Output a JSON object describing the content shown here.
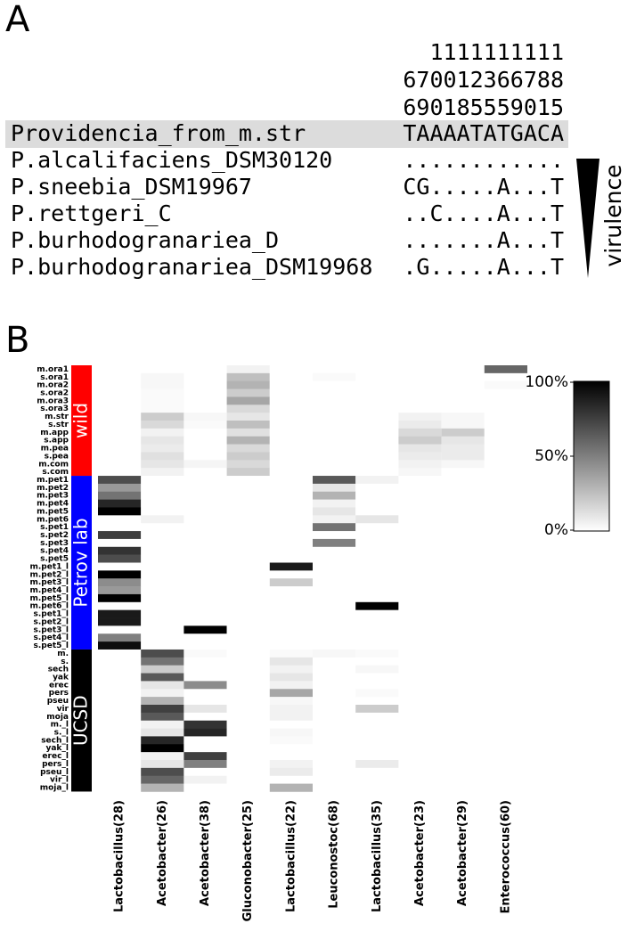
{
  "panel_a": {
    "label": "A",
    "header": [
      "1111111111",
      "670012366788",
      "690185559015"
    ],
    "rows": [
      {
        "name": "Providencia_from_m.str",
        "seq": "TAAAATATGACA"
      },
      {
        "name": "P.alcalifaciens_DSM30120",
        "seq": "............"
      },
      {
        "name": "P.sneebia_DSM19967",
        "seq": "CG.....A...T"
      },
      {
        "name": "P.rettgeri_C",
        "seq": "..C....A...T"
      },
      {
        "name": "P.burhodogranariea_D",
        "seq": ".......A...T"
      },
      {
        "name": "P.burhodogranariea_DSM19968",
        "seq": ".G.....A...T"
      }
    ],
    "annotation": "virulence"
  },
  "chart_data": {
    "type": "heatmap",
    "panel_label": "B",
    "columns": [
      "Lactobacillus(28)",
      "Acetobacter(26)",
      "Acetobacter(38)",
      "Gluconobacter(25)",
      "Lactobacillus(22)",
      "Leuconostoc(68)",
      "Lactobacillus(35)",
      "Acetobacter(23)",
      "Acetobacter(29)",
      "Enterococcus(60)"
    ],
    "zlim": [
      0,
      100
    ],
    "zticks": [
      {
        "value": 0,
        "label": "0%"
      },
      {
        "value": 50,
        "label": "50%"
      },
      {
        "value": 100,
        "label": "100%"
      }
    ],
    "colors": [
      "#ffffff",
      "#000000"
    ],
    "groups": [
      {
        "name": "wild",
        "color": "#ff0000",
        "rows": [
          {
            "label": "m.ora1",
            "values": [
              0,
              0,
              0,
              5,
              0,
              0,
              0,
              0,
              0,
              60
            ]
          },
          {
            "label": "s.ora1",
            "values": [
              0,
              3,
              0,
              25,
              0,
              2,
              0,
              0,
              0,
              0
            ]
          },
          {
            "label": "m.ora2",
            "values": [
              0,
              3,
              0,
              30,
              0,
              0,
              0,
              0,
              0,
              2
            ]
          },
          {
            "label": "s.ora2",
            "values": [
              0,
              2,
              0,
              20,
              0,
              0,
              0,
              0,
              0,
              0
            ]
          },
          {
            "label": "m.ora3",
            "values": [
              0,
              2,
              0,
              35,
              0,
              0,
              0,
              0,
              0,
              0
            ]
          },
          {
            "label": "s.ora3",
            "values": [
              0,
              2,
              0,
              15,
              0,
              0,
              0,
              0,
              0,
              0
            ]
          },
          {
            "label": "m.str",
            "values": [
              0,
              20,
              3,
              10,
              0,
              0,
              0,
              5,
              3,
              0
            ]
          },
          {
            "label": "s.str",
            "values": [
              0,
              15,
              2,
              25,
              0,
              0,
              0,
              8,
              3,
              0
            ]
          },
          {
            "label": "m.app",
            "values": [
              0,
              5,
              0,
              12,
              0,
              0,
              0,
              15,
              20,
              0
            ]
          },
          {
            "label": "s.app",
            "values": [
              0,
              10,
              0,
              30,
              0,
              0,
              0,
              20,
              10,
              0
            ]
          },
          {
            "label": "m.pea",
            "values": [
              0,
              8,
              0,
              15,
              0,
              0,
              0,
              10,
              8,
              0
            ]
          },
          {
            "label": "s.pea",
            "values": [
              0,
              12,
              0,
              20,
              0,
              0,
              0,
              8,
              8,
              0
            ]
          },
          {
            "label": "m.com",
            "values": [
              0,
              10,
              4,
              15,
              0,
              0,
              0,
              5,
              3,
              0
            ]
          },
          {
            "label": "s.com",
            "values": [
              0,
              5,
              0,
              20,
              0,
              0,
              0,
              3,
              0,
              0
            ]
          }
        ]
      },
      {
        "name": "Petrov lab",
        "color": "#0000ff",
        "rows": [
          {
            "label": "m.pet1",
            "values": [
              70,
              0,
              0,
              0,
              0,
              65,
              5,
              0,
              0,
              0
            ]
          },
          {
            "label": "m.pet2",
            "values": [
              40,
              0,
              0,
              0,
              0,
              10,
              0,
              0,
              0,
              0
            ]
          },
          {
            "label": "m.pet3",
            "values": [
              55,
              0,
              0,
              0,
              0,
              30,
              0,
              0,
              0,
              0
            ]
          },
          {
            "label": "m.pet4",
            "values": [
              85,
              0,
              0,
              0,
              0,
              5,
              0,
              0,
              0,
              0
            ]
          },
          {
            "label": "m.pet5",
            "values": [
              100,
              0,
              0,
              0,
              0,
              10,
              0,
              0,
              0,
              0
            ]
          },
          {
            "label": "m.pet6",
            "values": [
              0,
              5,
              0,
              0,
              0,
              5,
              10,
              0,
              0,
              0
            ]
          },
          {
            "label": "s.pet1",
            "values": [
              0,
              0,
              0,
              0,
              0,
              55,
              0,
              0,
              0,
              0
            ]
          },
          {
            "label": "s.pet2",
            "values": [
              75,
              0,
              0,
              0,
              0,
              0,
              0,
              0,
              0,
              0
            ]
          },
          {
            "label": "s.pet3",
            "values": [
              0,
              0,
              0,
              0,
              0,
              50,
              0,
              0,
              0,
              0
            ]
          },
          {
            "label": "s.pet4",
            "values": [
              80,
              0,
              0,
              0,
              0,
              0,
              0,
              0,
              0,
              0
            ]
          },
          {
            "label": "s.pet5",
            "values": [
              70,
              0,
              0,
              0,
              0,
              0,
              0,
              0,
              0,
              0
            ]
          },
          {
            "label": "m.pet1_l",
            "values": [
              0,
              0,
              0,
              0,
              90,
              0,
              0,
              0,
              0,
              0
            ]
          },
          {
            "label": "m.pet2_l",
            "values": [
              100,
              0,
              0,
              0,
              0,
              0,
              0,
              0,
              0,
              0
            ]
          },
          {
            "label": "m.pet3_l",
            "values": [
              45,
              0,
              0,
              0,
              20,
              0,
              0,
              0,
              0,
              0
            ]
          },
          {
            "label": "m.pet4_l",
            "values": [
              40,
              0,
              0,
              0,
              0,
              0,
              0,
              0,
              0,
              0
            ]
          },
          {
            "label": "m.pet5_l",
            "values": [
              100,
              0,
              0,
              0,
              0,
              0,
              0,
              0,
              0,
              0
            ]
          },
          {
            "label": "m.pet6_l",
            "values": [
              0,
              0,
              0,
              0,
              0,
              0,
              100,
              0,
              0,
              0
            ]
          },
          {
            "label": "s.pet1_l",
            "values": [
              90,
              0,
              0,
              0,
              0,
              0,
              0,
              0,
              0,
              0
            ]
          },
          {
            "label": "s.pet2_l",
            "values": [
              90,
              0,
              0,
              0,
              0,
              0,
              0,
              0,
              0,
              0
            ]
          },
          {
            "label": "s.pet3_l",
            "values": [
              0,
              0,
              100,
              0,
              0,
              0,
              0,
              0,
              0,
              0
            ]
          },
          {
            "label": "s.pet4_l",
            "values": [
              50,
              0,
              0,
              0,
              0,
              0,
              0,
              0,
              0,
              0
            ]
          },
          {
            "label": "s.pet5_l",
            "values": [
              95,
              0,
              0,
              0,
              0,
              0,
              0,
              0,
              0,
              0
            ]
          }
        ]
      },
      {
        "name": "UCSD",
        "color": "#000000",
        "rows": [
          {
            "label": "m.",
            "values": [
              0,
              70,
              2,
              0,
              2,
              3,
              2,
              0,
              0,
              0
            ]
          },
          {
            "label": "s.",
            "values": [
              0,
              55,
              0,
              0,
              10,
              0,
              0,
              0,
              0,
              0
            ]
          },
          {
            "label": "sech",
            "values": [
              0,
              20,
              0,
              0,
              5,
              0,
              3,
              0,
              0,
              0
            ]
          },
          {
            "label": "yak",
            "values": [
              0,
              65,
              0,
              0,
              10,
              0,
              0,
              0,
              0,
              0
            ]
          },
          {
            "label": "erec",
            "values": [
              0,
              10,
              45,
              0,
              5,
              0,
              0,
              0,
              0,
              0
            ]
          },
          {
            "label": "pers",
            "values": [
              0,
              5,
              0,
              0,
              35,
              0,
              2,
              0,
              0,
              0
            ]
          },
          {
            "label": "pseu",
            "values": [
              0,
              30,
              0,
              0,
              3,
              0,
              0,
              0,
              0,
              0
            ]
          },
          {
            "label": "vir",
            "values": [
              0,
              75,
              10,
              0,
              5,
              0,
              20,
              0,
              0,
              0
            ]
          },
          {
            "label": "moja",
            "values": [
              0,
              65,
              0,
              0,
              5,
              0,
              0,
              0,
              0,
              0
            ]
          },
          {
            "label": "m._l",
            "values": [
              0,
              5,
              80,
              0,
              0,
              0,
              0,
              0,
              0,
              0
            ]
          },
          {
            "label": "s._l",
            "values": [
              0,
              10,
              85,
              0,
              3,
              0,
              0,
              0,
              0,
              0
            ]
          },
          {
            "label": "sech_l",
            "values": [
              0,
              85,
              0,
              0,
              2,
              0,
              0,
              0,
              0,
              0
            ]
          },
          {
            "label": "yak_l",
            "values": [
              0,
              100,
              0,
              0,
              0,
              0,
              0,
              0,
              0,
              0
            ]
          },
          {
            "label": "erec_l",
            "values": [
              0,
              5,
              75,
              0,
              0,
              0,
              0,
              0,
              0,
              0
            ]
          },
          {
            "label": "pers_l",
            "values": [
              0,
              10,
              50,
              0,
              5,
              0,
              8,
              0,
              0,
              0
            ]
          },
          {
            "label": "pseu_l",
            "values": [
              0,
              70,
              0,
              0,
              8,
              0,
              0,
              0,
              0,
              0
            ]
          },
          {
            "label": "vir_l",
            "values": [
              0,
              60,
              5,
              0,
              0,
              0,
              0,
              0,
              0,
              0
            ]
          },
          {
            "label": "moja_l",
            "values": [
              0,
              30,
              0,
              0,
              30,
              0,
              0,
              0,
              0,
              0
            ]
          }
        ]
      }
    ]
  }
}
